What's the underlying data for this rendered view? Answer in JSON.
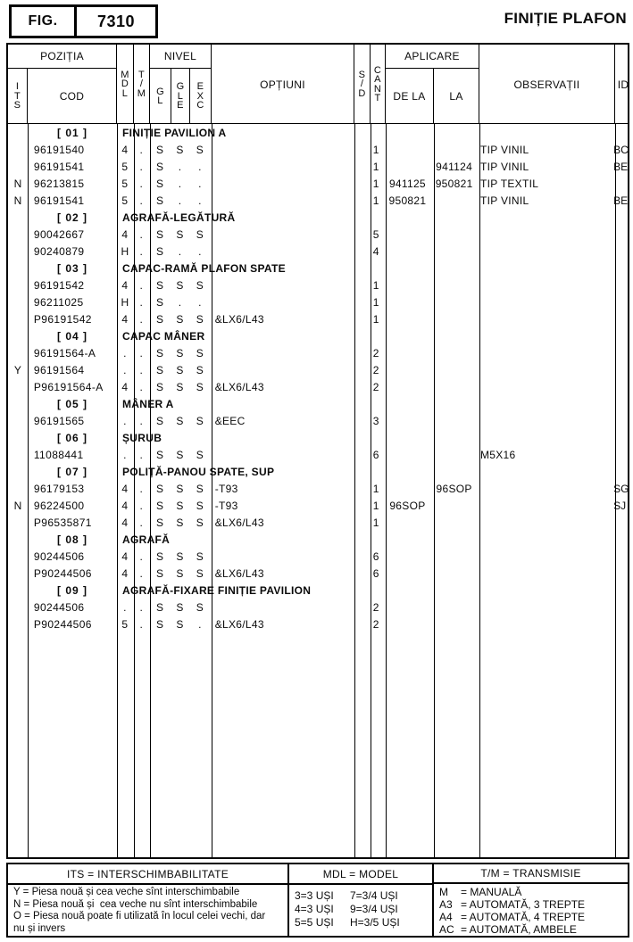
{
  "fig": {
    "label": "FIG.",
    "number": "7310"
  },
  "title": "FINIȚIE PLAFON",
  "table": {
    "header": {
      "pozitia": "POZIȚIA",
      "its": "ITS",
      "cod": "COD",
      "mdl": "MDL",
      "tm": "T/M",
      "nivel": "NIVEL",
      "gl": "GL",
      "gle": "GLE",
      "exc": "EXC",
      "optiuni": "OPȚIUNI",
      "sd": "S/D",
      "cant": "CANT",
      "aplicare": "APLICARE",
      "dela": "DE LA",
      "la": "LA",
      "observatii": "OBSERVAȚII",
      "id": "ID"
    },
    "rows": [
      {
        "type": "section",
        "pos": "[ 01 ]",
        "title": "FINIȚIE PAVILION A"
      },
      {
        "type": "part",
        "its": "",
        "cod": "96191540",
        "mdl": "4",
        "tm": ".",
        "gl": "S",
        "gle": "S",
        "exc": "S",
        "opt": "",
        "sd": "",
        "cant": "1",
        "dela": "",
        "la": "",
        "obs": "TIP VINIL",
        "id": "BC"
      },
      {
        "type": "part",
        "its": "",
        "cod": "96191541",
        "mdl": "5",
        "tm": ".",
        "gl": "S",
        "gle": ".",
        "exc": ".",
        "opt": "",
        "sd": "",
        "cant": "1",
        "dela": "",
        "la": "941124",
        "obs": "TIP VINIL",
        "id": "BE"
      },
      {
        "type": "part",
        "its": "N",
        "cod": "96213815",
        "mdl": "5",
        "tm": ".",
        "gl": "S",
        "gle": ".",
        "exc": ".",
        "opt": "",
        "sd": "",
        "cant": "1",
        "dela": "941125",
        "la": "950821",
        "obs": "TIP TEXTIL",
        "id": ""
      },
      {
        "type": "part",
        "its": "N",
        "cod": "96191541",
        "mdl": "5",
        "tm": ".",
        "gl": "S",
        "gle": ".",
        "exc": ".",
        "opt": "",
        "sd": "",
        "cant": "1",
        "dela": "950821",
        "la": "",
        "obs": "TIP VINIL",
        "id": "BE"
      },
      {
        "type": "section",
        "pos": "[ 02 ]",
        "title": "AGRAFĂ-LEGĂTURĂ"
      },
      {
        "type": "part",
        "its": "",
        "cod": "90042667",
        "mdl": "4",
        "tm": ".",
        "gl": "S",
        "gle": "S",
        "exc": "S",
        "opt": "",
        "sd": "",
        "cant": "5",
        "dela": "",
        "la": "",
        "obs": "",
        "id": ""
      },
      {
        "type": "part",
        "its": "",
        "cod": "90240879",
        "mdl": "H",
        "tm": ".",
        "gl": "S",
        "gle": ".",
        "exc": ".",
        "opt": "",
        "sd": "",
        "cant": "4",
        "dela": "",
        "la": "",
        "obs": "",
        "id": ""
      },
      {
        "type": "section",
        "pos": "[ 03 ]",
        "title": "CAPAC-RAMĂ PLAFON SPATE"
      },
      {
        "type": "part",
        "its": "",
        "cod": "96191542",
        "mdl": "4",
        "tm": ".",
        "gl": "S",
        "gle": "S",
        "exc": "S",
        "opt": "",
        "sd": "",
        "cant": "1",
        "dela": "",
        "la": "",
        "obs": "",
        "id": ""
      },
      {
        "type": "part",
        "its": "",
        "cod": "96211025",
        "mdl": "H",
        "tm": ".",
        "gl": "S",
        "gle": ".",
        "exc": ".",
        "opt": "",
        "sd": "",
        "cant": "1",
        "dela": "",
        "la": "",
        "obs": "",
        "id": ""
      },
      {
        "type": "part",
        "its": "",
        "cod": "P96191542",
        "mdl": "4",
        "tm": ".",
        "gl": "S",
        "gle": "S",
        "exc": "S",
        "opt": "&LX6/L43",
        "sd": "",
        "cant": "1",
        "dela": "",
        "la": "",
        "obs": "",
        "id": ""
      },
      {
        "type": "section",
        "pos": "[ 04 ]",
        "title": "CAPAC MÂNER"
      },
      {
        "type": "part",
        "its": "",
        "cod": "96191564-A",
        "mdl": ".",
        "tm": ".",
        "gl": "S",
        "gle": "S",
        "exc": "S",
        "opt": "",
        "sd": "",
        "cant": "2",
        "dela": "",
        "la": "",
        "obs": "",
        "id": ""
      },
      {
        "type": "part",
        "its": "Y",
        "cod": "96191564",
        "mdl": ".",
        "tm": ".",
        "gl": "S",
        "gle": "S",
        "exc": "S",
        "opt": "",
        "sd": "",
        "cant": "2",
        "dela": "",
        "la": "",
        "obs": "",
        "id": ""
      },
      {
        "type": "part",
        "its": "",
        "cod": "P96191564-A",
        "mdl": "4",
        "tm": ".",
        "gl": "S",
        "gle": "S",
        "exc": "S",
        "opt": "&LX6/L43",
        "sd": "",
        "cant": "2",
        "dela": "",
        "la": "",
        "obs": "",
        "id": ""
      },
      {
        "type": "section",
        "pos": "[ 05 ]",
        "title": "MÂNER A"
      },
      {
        "type": "part",
        "its": "",
        "cod": "96191565",
        "mdl": ".",
        "tm": ".",
        "gl": "S",
        "gle": "S",
        "exc": "S",
        "opt": "&EEC",
        "sd": "",
        "cant": "3",
        "dela": "",
        "la": "",
        "obs": "",
        "id": ""
      },
      {
        "type": "section",
        "pos": "[ 06 ]",
        "title": "ȘURUB"
      },
      {
        "type": "part",
        "its": "",
        "cod": "11088441",
        "mdl": ".",
        "tm": ".",
        "gl": "S",
        "gle": "S",
        "exc": "S",
        "opt": "",
        "sd": "",
        "cant": "6",
        "dela": "",
        "la": "",
        "obs": "M5X16",
        "id": ""
      },
      {
        "type": "section",
        "pos": "[ 07 ]",
        "title": "POLIȚĂ-PANOU SPATE, SUP"
      },
      {
        "type": "part",
        "its": "",
        "cod": "96179153",
        "mdl": "4",
        "tm": ".",
        "gl": "S",
        "gle": "S",
        "exc": "S",
        "opt": "-T93",
        "sd": "",
        "cant": "1",
        "dela": "",
        "la": "96SOP",
        "obs": "",
        "id": "SG"
      },
      {
        "type": "part",
        "its": "N",
        "cod": "96224500",
        "mdl": "4",
        "tm": ".",
        "gl": "S",
        "gle": "S",
        "exc": "S",
        "opt": "-T93",
        "sd": "",
        "cant": "1",
        "dela": "96SOP",
        "la": "",
        "obs": "",
        "id": "SJ"
      },
      {
        "type": "part",
        "its": "",
        "cod": "P96535871",
        "mdl": "4",
        "tm": ".",
        "gl": "S",
        "gle": "S",
        "exc": "S",
        "opt": "&LX6/L43",
        "sd": "",
        "cant": "1",
        "dela": "",
        "la": "",
        "obs": "",
        "id": ""
      },
      {
        "type": "section",
        "pos": "[ 08 ]",
        "title": "AGRAFĂ"
      },
      {
        "type": "part",
        "its": "",
        "cod": "90244506",
        "mdl": "4",
        "tm": ".",
        "gl": "S",
        "gle": "S",
        "exc": "S",
        "opt": "",
        "sd": "",
        "cant": "6",
        "dela": "",
        "la": "",
        "obs": "",
        "id": ""
      },
      {
        "type": "part",
        "its": "",
        "cod": "P90244506",
        "mdl": "4",
        "tm": ".",
        "gl": "S",
        "gle": "S",
        "exc": "S",
        "opt": "&LX6/L43",
        "sd": "",
        "cant": "6",
        "dela": "",
        "la": "",
        "obs": "",
        "id": ""
      },
      {
        "type": "section",
        "pos": "[ 09 ]",
        "title": "AGRAFĂ-FIXARE FINIȚIE PAVILION"
      },
      {
        "type": "part",
        "its": "",
        "cod": "90244506",
        "mdl": ".",
        "tm": ".",
        "gl": "S",
        "gle": "S",
        "exc": "S",
        "opt": "",
        "sd": "",
        "cant": "2",
        "dela": "",
        "la": "",
        "obs": "",
        "id": ""
      },
      {
        "type": "part",
        "its": "",
        "cod": "P90244506",
        "mdl": "5",
        "tm": ".",
        "gl": "S",
        "gle": "S",
        "exc": ".",
        "opt": "&LX6/L43",
        "sd": "",
        "cant": "2",
        "dela": "",
        "la": "",
        "obs": "",
        "id": ""
      }
    ]
  },
  "legend": {
    "its": {
      "title": "ITS = INTERSCHIMBABILITATE",
      "lines": [
        "Y = Piesa nouă și cea veche sînt interschimbabile",
        "N = Piesa nouă și  cea veche nu sînt interschimbabile",
        "O = Piesa nouă poate fi utilizată în locul celei vechi, dar",
        "nu și invers"
      ]
    },
    "mdl": {
      "title": "MDL = MODEL",
      "lines": [
        {
          "a": "3=3 UȘI",
          "b": "7=3/4 UȘI"
        },
        {
          "a": "4=3 UȘI",
          "b": "9=3/4 UȘI"
        },
        {
          "a": "5=5 UȘI",
          "b": "H=3/5 UȘI"
        }
      ]
    },
    "tm": {
      "title": "T/M = TRANSMISIE",
      "lines": [
        {
          "k": "M",
          "rest": "= MANUALĂ"
        },
        {
          "k": "A3",
          "rest": "= AUTOMATĂ, 3 TREPTE"
        },
        {
          "k": "A4",
          "rest": "= AUTOMATĂ, 4 TREPTE"
        },
        {
          "k": "AC",
          "rest": "= AUTOMATĂ, AMBELE"
        }
      ]
    }
  }
}
